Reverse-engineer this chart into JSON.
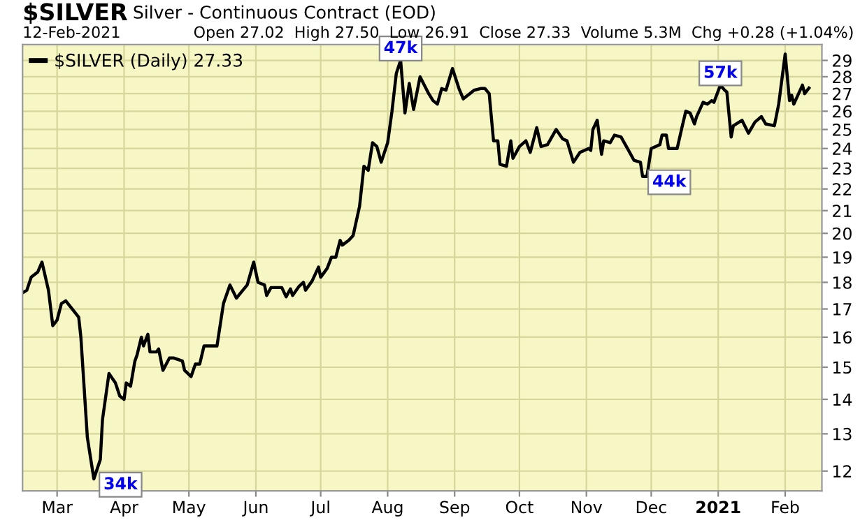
{
  "chart_data": {
    "type": "line",
    "title": "$SILVER",
    "subtitle": "Silver - Continuous Contract (EOD)",
    "annotations": [
      "12-Feb-2021",
      "Open 27.02  High 27.50  Low 26.91  Close 27.33  Volume 5.3M  Chg +0.28 (+1.04%)",
      {
        "text": "34k",
        "x": "2020-03-18",
        "y": 11.8
      },
      {
        "text": "47k",
        "x": "2020-08-07",
        "y": 29.0
      },
      {
        "text": "44k",
        "x": "2020-11-27",
        "y": 22.6
      },
      {
        "text": "57k",
        "x": "2021-01-02",
        "y": 27.5
      }
    ],
    "series": [
      {
        "name": "$SILVER (Daily) 27.33",
        "color": "#000000",
        "x": [
          "2020-02-14",
          "2020-02-16",
          "2020-02-18",
          "2020-02-21",
          "2020-02-23",
          "2020-02-26",
          "2020-02-28",
          "2020-03-01",
          "2020-03-03",
          "2020-03-05",
          "2020-03-08",
          "2020-03-11",
          "2020-03-12",
          "2020-03-15",
          "2020-03-18",
          "2020-03-21",
          "2020-03-22",
          "2020-03-25",
          "2020-03-28",
          "2020-03-30",
          "2020-04-01",
          "2020-04-02",
          "2020-04-04",
          "2020-04-06",
          "2020-04-07",
          "2020-04-09",
          "2020-04-10",
          "2020-04-12",
          "2020-04-13",
          "2020-04-16",
          "2020-04-17",
          "2020-04-19",
          "2020-04-22",
          "2020-04-24",
          "2020-04-28",
          "2020-04-29",
          "2020-05-02",
          "2020-05-04",
          "2020-05-06",
          "2020-05-08",
          "2020-05-11",
          "2020-05-14",
          "2020-05-17",
          "2020-05-20",
          "2020-05-23",
          "2020-05-25",
          "2020-05-28",
          "2020-05-31",
          "2020-06-02",
          "2020-06-05",
          "2020-06-06",
          "2020-06-08",
          "2020-06-11",
          "2020-06-13",
          "2020-06-15",
          "2020-06-17",
          "2020-06-18",
          "2020-06-21",
          "2020-06-23",
          "2020-06-24",
          "2020-06-27",
          "2020-06-30",
          "2020-07-01",
          "2020-07-04",
          "2020-07-06",
          "2020-07-08",
          "2020-07-10",
          "2020-07-11",
          "2020-07-14",
          "2020-07-16",
          "2020-07-19",
          "2020-07-21",
          "2020-07-23",
          "2020-07-25",
          "2020-07-27",
          "2020-07-29",
          "2020-08-01",
          "2020-08-03",
          "2020-08-05",
          "2020-08-07",
          "2020-08-09",
          "2020-08-11",
          "2020-08-13",
          "2020-08-16",
          "2020-08-20",
          "2020-08-22",
          "2020-08-24",
          "2020-08-26",
          "2020-08-28",
          "2020-08-31",
          "2020-09-03",
          "2020-09-05",
          "2020-09-08",
          "2020-09-10",
          "2020-09-13",
          "2020-09-15",
          "2020-09-17",
          "2020-09-19",
          "2020-09-21",
          "2020-09-22",
          "2020-09-25",
          "2020-09-27",
          "2020-09-28",
          "2020-10-01",
          "2020-10-04",
          "2020-10-06",
          "2020-10-09",
          "2020-10-11",
          "2020-10-14",
          "2020-10-18",
          "2020-10-21",
          "2020-10-23",
          "2020-10-26",
          "2020-10-29",
          "2020-11-02",
          "2020-11-03",
          "2020-11-04",
          "2020-11-06",
          "2020-11-08",
          "2020-11-09",
          "2020-11-12",
          "2020-11-14",
          "2020-11-17",
          "2020-11-20",
          "2020-11-23",
          "2020-11-26",
          "2020-11-27",
          "2020-11-29",
          "2020-12-01",
          "2020-12-03",
          "2020-12-05",
          "2020-12-06",
          "2020-12-08",
          "2020-12-09",
          "2020-12-13",
          "2020-12-15",
          "2020-12-17",
          "2020-12-19",
          "2020-12-21",
          "2020-12-22",
          "2020-12-25",
          "2020-12-27",
          "2020-12-29",
          "2020-12-30",
          "2021-01-02",
          "2021-01-04",
          "2021-01-05",
          "2021-01-07",
          "2021-01-08",
          "2021-01-12",
          "2021-01-15",
          "2021-01-18",
          "2021-01-21",
          "2021-01-23",
          "2021-01-27",
          "2021-01-29",
          "2021-02-01",
          "2021-02-03",
          "2021-02-04",
          "2021-02-05",
          "2021-02-09",
          "2021-02-10",
          "2021-02-12"
        ],
        "values": [
          17.6,
          17.7,
          18.2,
          18.4,
          18.8,
          17.7,
          16.4,
          16.6,
          17.2,
          17.3,
          17.0,
          16.7,
          16.0,
          12.9,
          11.8,
          12.3,
          13.4,
          14.8,
          14.5,
          14.1,
          14.0,
          14.5,
          14.4,
          15.2,
          15.4,
          16.0,
          15.7,
          16.1,
          15.5,
          15.5,
          15.6,
          14.9,
          15.3,
          15.3,
          15.2,
          14.9,
          14.7,
          15.1,
          15.1,
          15.7,
          15.7,
          15.7,
          17.2,
          17.9,
          17.4,
          17.6,
          17.9,
          18.8,
          18.0,
          17.9,
          17.5,
          17.8,
          17.8,
          17.8,
          17.45,
          17.75,
          17.5,
          17.85,
          18.0,
          17.7,
          18.05,
          18.6,
          18.2,
          18.55,
          19.0,
          19.0,
          19.7,
          19.5,
          19.7,
          19.9,
          21.2,
          23.1,
          22.9,
          24.3,
          24.1,
          23.3,
          24.3,
          26.0,
          28.2,
          29.0,
          25.9,
          27.6,
          26.1,
          28.0,
          27.0,
          26.6,
          26.4,
          27.3,
          27.2,
          28.5,
          27.3,
          26.7,
          27.0,
          27.2,
          27.3,
          27.3,
          27.0,
          24.4,
          24.4,
          23.2,
          23.1,
          24.4,
          23.5,
          24.1,
          24.4,
          23.8,
          25.1,
          24.1,
          24.2,
          25.0,
          24.5,
          24.4,
          23.3,
          23.8,
          24.0,
          23.9,
          25.0,
          25.5,
          23.7,
          24.4,
          24.3,
          24.7,
          24.6,
          24.0,
          23.4,
          23.3,
          22.6,
          22.6,
          24.0,
          24.1,
          24.2,
          24.7,
          24.7,
          24.0,
          24.0,
          25.0,
          26.0,
          25.9,
          25.3,
          25.7,
          26.5,
          26.4,
          26.6,
          26.5,
          27.5,
          27.2,
          27.1,
          24.6,
          25.2,
          25.5,
          24.8,
          25.4,
          25.7,
          25.3,
          25.2,
          26.4,
          29.4,
          26.6,
          26.9,
          26.4,
          27.5,
          27.0,
          27.33
        ]
      }
    ],
    "log": "y",
    "ylim": [
      11.5,
      30
    ],
    "yticks": [
      12,
      13,
      14,
      15,
      16,
      17,
      18,
      19,
      20,
      21,
      22,
      23,
      24,
      25,
      26,
      27,
      28,
      29
    ],
    "xlim": [
      "2020-02-14",
      "2021-02-18"
    ],
    "xticks": [
      {
        "value": "2020-03-01",
        "label": "Mar"
      },
      {
        "value": "2020-04-01",
        "label": "Apr"
      },
      {
        "value": "2020-05-01",
        "label": "May"
      },
      {
        "value": "2020-06-01",
        "label": "Jun"
      },
      {
        "value": "2020-07-01",
        "label": "Jul"
      },
      {
        "value": "2020-08-01",
        "label": "Aug"
      },
      {
        "value": "2020-09-01",
        "label": "Sep"
      },
      {
        "value": "2020-10-01",
        "label": "Oct"
      },
      {
        "value": "2020-11-01",
        "label": "Nov"
      },
      {
        "value": "2020-12-01",
        "label": "Dec"
      },
      {
        "value": "2021-01-01",
        "label": "2021"
      },
      {
        "value": "2021-02-01",
        "label": "Feb"
      }
    ],
    "grid": true,
    "legend": "top left",
    "marker": "none",
    "line_style": "solid"
  }
}
